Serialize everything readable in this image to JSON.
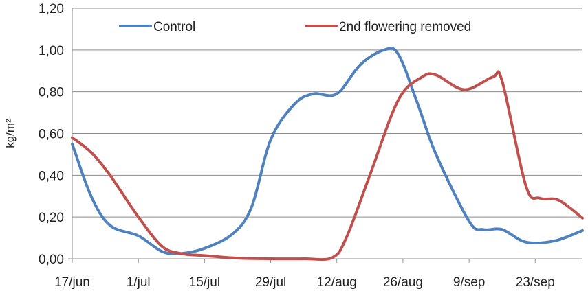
{
  "chart_data": {
    "type": "line",
    "title": "",
    "xlabel": "",
    "ylabel": "kg/m²",
    "ylim": [
      0,
      1.2
    ],
    "yticks": [
      "0,00",
      "0,20",
      "0,40",
      "0,60",
      "0,80",
      "1,00",
      "1,20"
    ],
    "xticks": [
      "17/jun",
      "1/jul",
      "15/jul",
      "29/jul",
      "12/aug",
      "26/aug",
      "9/sep",
      "23/sep"
    ],
    "xdomain_days": [
      0,
      108
    ],
    "grid": "horizontal",
    "legend_position": "top",
    "series": [
      {
        "name": "Control",
        "color": "#4F81BD",
        "points": [
          {
            "x": "17/jun",
            "y": 0.55
          },
          {
            "x": "21/jun",
            "y": 0.3
          },
          {
            "x": "25/jun",
            "y": 0.16
          },
          {
            "x": "1/jul",
            "y": 0.11
          },
          {
            "x": "6/jul",
            "y": 0.035
          },
          {
            "x": "10/jul",
            "y": 0.025
          },
          {
            "x": "15/jul",
            "y": 0.05
          },
          {
            "x": "21/jul",
            "y": 0.12
          },
          {
            "x": "25/jul",
            "y": 0.25
          },
          {
            "x": "29/jul",
            "y": 0.57
          },
          {
            "x": "3/aug",
            "y": 0.74
          },
          {
            "x": "7/aug",
            "y": 0.79
          },
          {
            "x": "12/aug",
            "y": 0.79
          },
          {
            "x": "17/aug",
            "y": 0.93
          },
          {
            "x": "22/aug",
            "y": 1.0
          },
          {
            "x": "25/aug",
            "y": 0.98
          },
          {
            "x": "29/aug",
            "y": 0.75
          },
          {
            "x": "2/sep",
            "y": 0.5
          },
          {
            "x": "9/sep",
            "y": 0.18
          },
          {
            "x": "12/sep",
            "y": 0.14
          },
          {
            "x": "16/sep",
            "y": 0.14
          },
          {
            "x": "21/sep",
            "y": 0.08
          },
          {
            "x": "27/sep",
            "y": 0.085
          },
          {
            "x": "3/oct",
            "y": 0.135
          }
        ]
      },
      {
        "name": "2nd flowering removed",
        "color": "#C0504D",
        "points": [
          {
            "x": "17/jun",
            "y": 0.58
          },
          {
            "x": "21/jun",
            "y": 0.51
          },
          {
            "x": "25/jun",
            "y": 0.4
          },
          {
            "x": "1/jul",
            "y": 0.2
          },
          {
            "x": "6/jul",
            "y": 0.06
          },
          {
            "x": "10/jul",
            "y": 0.025
          },
          {
            "x": "15/jul",
            "y": 0.015
          },
          {
            "x": "22/jul",
            "y": 0.003
          },
          {
            "x": "29/jul",
            "y": 0.0
          },
          {
            "x": "5/aug",
            "y": 0.0
          },
          {
            "x": "11/aug",
            "y": 0.005
          },
          {
            "x": "14/aug",
            "y": 0.1
          },
          {
            "x": "19/aug",
            "y": 0.4
          },
          {
            "x": "25/aug",
            "y": 0.76
          },
          {
            "x": "30/aug",
            "y": 0.87
          },
          {
            "x": "2/sep",
            "y": 0.88
          },
          {
            "x": "8/sep",
            "y": 0.81
          },
          {
            "x": "14/sep",
            "y": 0.87
          },
          {
            "x": "16/sep",
            "y": 0.85
          },
          {
            "x": "21/sep",
            "y": 0.35
          },
          {
            "x": "24/sep",
            "y": 0.29
          },
          {
            "x": "28/sep",
            "y": 0.28
          },
          {
            "x": "3/oct",
            "y": 0.195
          }
        ]
      }
    ]
  }
}
